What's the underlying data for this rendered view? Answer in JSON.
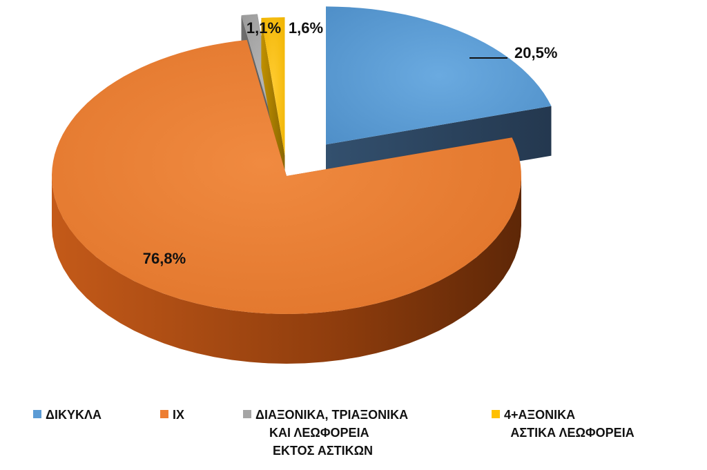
{
  "chart_data": {
    "type": "pie",
    "title": "",
    "categories": [
      "ΔΙΚΥΚΛΑ",
      "ΙΧ",
      "ΔΙΑΞΟΝΙΚΑ, ΤΡΙΑΞΟΝΙΚΑ\nΚΑΙ ΛΕΩΦΟΡΕΙΑ\nΕΚΤΟΣ ΑΣΤΙΚΩΝ",
      "4+ΑΞΟΝΙΚΑ\nΑΣΤΙΚΑ ΛΕΩΦΟΡΕΙΑ"
    ],
    "values": [
      20.5,
      76.8,
      1.1,
      1.6
    ],
    "data_labels": [
      "20,5%",
      "76,8%",
      "1,1%",
      "1,6%"
    ],
    "colors": [
      "#5b9bd5",
      "#ed7d31",
      "#a5a5a5",
      "#ffc000"
    ],
    "legend_position": "bottom",
    "exploded": true,
    "style": "3d"
  }
}
